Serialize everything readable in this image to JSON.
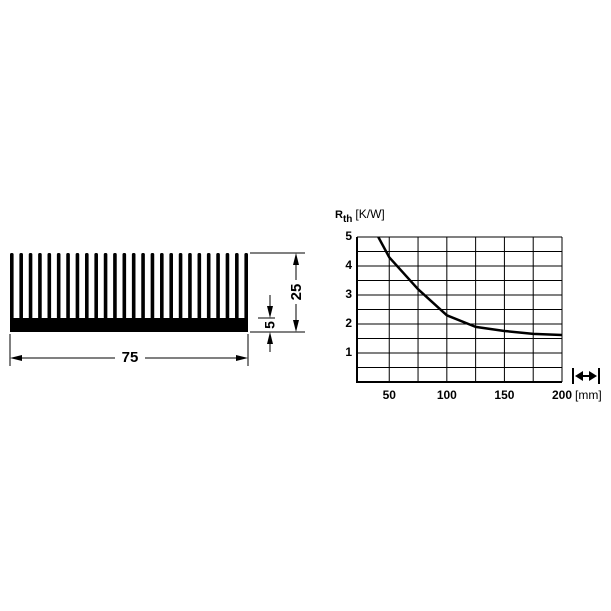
{
  "drawing": {
    "width_label": "75",
    "height_label": "25",
    "base_label": "5"
  },
  "chart_data": {
    "type": "line",
    "y_label": {
      "symbol": "R",
      "subscript": "th",
      "unit": "[K/W]"
    },
    "x_label": "[mm]",
    "x": [
      40.5,
      50,
      75,
      100,
      125,
      150,
      175,
      200
    ],
    "series": [
      {
        "color": "#000000",
        "values": [
          5,
          4.3,
          3.2,
          2.3,
          1.9,
          1.76,
          1.66,
          1.62
        ]
      }
    ],
    "xlim": [
      22,
      200
    ],
    "xticks": [
      50,
      100,
      150,
      200
    ],
    "ylim": [
      0,
      5
    ],
    "yticks": [
      1,
      2,
      3,
      4,
      5
    ],
    "xgrid": [
      50,
      75,
      100,
      125,
      150,
      175,
      200
    ],
    "ygrid": [
      0.5,
      1,
      1.5,
      2,
      2.5,
      3,
      3.5,
      4,
      4.5,
      5
    ],
    "grid": true
  }
}
